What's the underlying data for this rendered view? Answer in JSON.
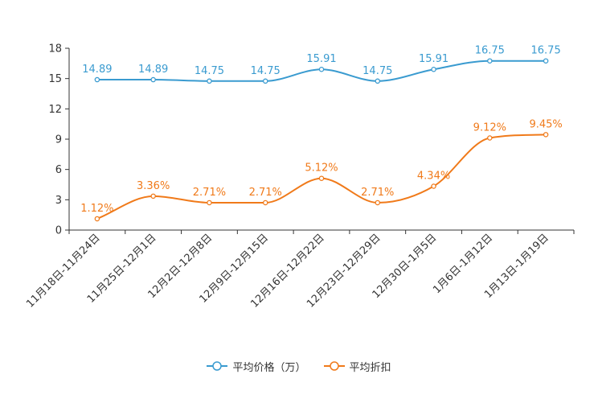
{
  "chart_data": {
    "type": "line",
    "categories": [
      "11月18日-11月24日",
      "11月25日-12月1日",
      "12月2日-12月8日",
      "12月9日-12月15日",
      "12月16日-12月22日",
      "12月23日-12月29日",
      "12月30日-1月5日",
      "1月6日-1月12日",
      "1月13日-1月19日"
    ],
    "ylim": [
      0,
      18
    ],
    "yticks": [
      "0",
      "3",
      "6",
      "9",
      "12",
      "15",
      "18"
    ],
    "series": [
      {
        "name": "平均价格（万）",
        "color": "#3a9bd0",
        "values": [
          14.89,
          14.89,
          14.75,
          14.75,
          15.91,
          14.75,
          15.91,
          16.75,
          16.75
        ],
        "labels": [
          "14.89",
          "14.89",
          "14.75",
          "14.75",
          "15.91",
          "14.75",
          "15.91",
          "16.75",
          "16.75"
        ]
      },
      {
        "name": "平均折扣",
        "color": "#f07a1a",
        "values": [
          1.12,
          3.36,
          2.71,
          2.71,
          5.12,
          2.71,
          4.34,
          9.12,
          9.45
        ],
        "labels": [
          "1.12%",
          "3.36%",
          "2.71%",
          "2.71%",
          "5.12%",
          "2.71%",
          "4.34%",
          "9.12%",
          "9.45%"
        ]
      }
    ]
  }
}
